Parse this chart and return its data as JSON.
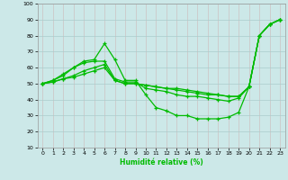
{
  "xlabel": "Humidité relative (%)",
  "bg_color": "#cce8e8",
  "grid_color": "#aacccc",
  "line_color": "#00bb00",
  "xlim": [
    -0.5,
    23.5
  ],
  "ylim": [
    10,
    100
  ],
  "xticks": [
    0,
    1,
    2,
    3,
    4,
    5,
    6,
    7,
    8,
    9,
    10,
    11,
    12,
    13,
    14,
    15,
    16,
    17,
    18,
    19,
    20,
    21,
    22,
    23
  ],
  "yticks": [
    10,
    20,
    30,
    40,
    50,
    60,
    70,
    80,
    90,
    100
  ],
  "line1_x": [
    0,
    1,
    2,
    3,
    4,
    5,
    6,
    7,
    8,
    9,
    10,
    11,
    12,
    13,
    14,
    15,
    16,
    17,
    18,
    19,
    20,
    21,
    22,
    23
  ],
  "line1_y": [
    50,
    52,
    55,
    60,
    64,
    65,
    75,
    65,
    52,
    52,
    43,
    35,
    33,
    30,
    30,
    28,
    28,
    28,
    29,
    32,
    48,
    80,
    87,
    90
  ],
  "line2_x": [
    0,
    1,
    2,
    3,
    4,
    5,
    6,
    7,
    8,
    9,
    10,
    11,
    12,
    13,
    14,
    15,
    16,
    17,
    18,
    19,
    20,
    21,
    22,
    23
  ],
  "line2_y": [
    50,
    52,
    56,
    60,
    63,
    64,
    64,
    53,
    51,
    51,
    47,
    46,
    45,
    43,
    42,
    42,
    41,
    40,
    39,
    41,
    48,
    80,
    87,
    90
  ],
  "line3_x": [
    0,
    1,
    2,
    3,
    4,
    5,
    6,
    7,
    8,
    9,
    10,
    11,
    12,
    13,
    14,
    15,
    16,
    17,
    18,
    19,
    20,
    21,
    22,
    23
  ],
  "line3_y": [
    50,
    51,
    53,
    55,
    58,
    60,
    62,
    52,
    50,
    50,
    49,
    48,
    47,
    46,
    45,
    44,
    43,
    43,
    42,
    42,
    48,
    80,
    87,
    90
  ],
  "line4_x": [
    0,
    1,
    2,
    3,
    4,
    5,
    6,
    7,
    8,
    9,
    10,
    11,
    12,
    13,
    14,
    15,
    16,
    17,
    18,
    19,
    20,
    21,
    22,
    23
  ],
  "line4_y": [
    50,
    51,
    53,
    54,
    56,
    58,
    60,
    52,
    50,
    50,
    49,
    48,
    47,
    47,
    46,
    45,
    44,
    43,
    42,
    42,
    48,
    80,
    87,
    90
  ]
}
